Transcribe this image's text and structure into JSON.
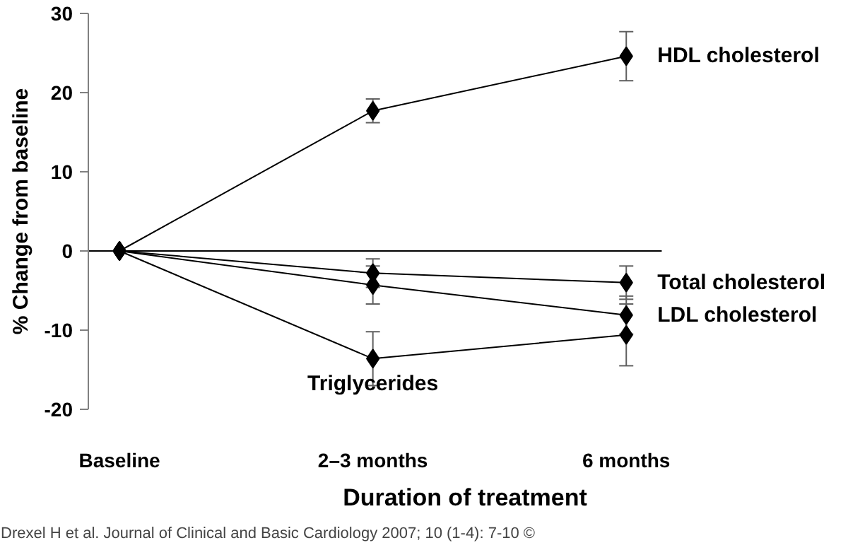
{
  "chart_data": {
    "type": "line",
    "xlabel": "Duration of treatment",
    "ylabel": "% Change from baseline",
    "categories": [
      "Baseline",
      "2–3 months",
      "6 months"
    ],
    "series": [
      {
        "name": "HDL cholesterol",
        "color": "#000000",
        "values": [
          0,
          17.7,
          24.6
        ],
        "errors": [
          null,
          1.5,
          3.1
        ]
      },
      {
        "name": "Total cholesterol",
        "color": "#000000",
        "values": [
          0,
          -2.8,
          -4.0
        ],
        "errors": [
          null,
          1.8,
          2.1
        ]
      },
      {
        "name": "LDL cholesterol",
        "color": "#000000",
        "values": [
          0,
          -4.3,
          -8.1
        ],
        "errors": [
          null,
          2.4,
          2.4
        ]
      },
      {
        "name": "Triglycerides",
        "color": "#000000",
        "values": [
          0,
          -13.6,
          -10.6
        ],
        "errors": [
          null,
          3.4,
          3.9
        ]
      }
    ],
    "annotations": [
      "Drexel H et al. Journal of Clinical and Basic Cardiology 2007; 10 (1-4): 7-10 ©"
    ],
    "ylim": [
      -20,
      30
    ],
    "yticks": [
      -20,
      -10,
      0,
      10,
      20,
      30
    ],
    "ref_lines": [
      {
        "axis": "y",
        "value": 0
      }
    ],
    "marker": "diamond",
    "line_style": "solid",
    "grid": false
  }
}
